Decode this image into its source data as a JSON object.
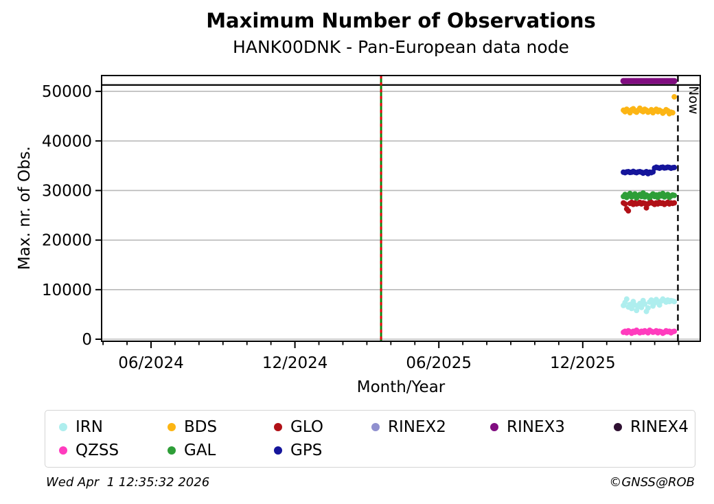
{
  "header": {
    "title": "Maximum Number of Observations",
    "subtitle": "HANK00DNK - Pan-European data node"
  },
  "footer": {
    "timestamp": "Wed Apr  1 12:35:32 2026",
    "credit": "©GNSS@ROB"
  },
  "chart_data": {
    "type": "scatter",
    "title": "Maximum Number of Observations",
    "subtitle": "HANK00DNK - Pan-European data node",
    "xlabel": "Month/Year",
    "ylabel": "Max. nr. of Obs.",
    "xlim": [
      2024.245,
      2026.325
    ],
    "ylim": [
      -415,
      53200
    ],
    "grid": "horizontal",
    "colors": {
      "grid": "#b8b8b8",
      "frame": "#000000"
    },
    "x_major_ticks": [
      {
        "value": 2024.4167,
        "label": "06/2024"
      },
      {
        "value": 2024.9167,
        "label": "12/2024"
      },
      {
        "value": 2025.4167,
        "label": "06/2025"
      },
      {
        "value": 2025.9167,
        "label": "12/2025"
      }
    ],
    "x_minor_step_months": 1,
    "y_ticks": [
      {
        "value": 0,
        "label": "0"
      },
      {
        "value": 10000,
        "label": "10000"
      },
      {
        "value": 20000,
        "label": "20000"
      },
      {
        "value": 30000,
        "label": "30000"
      },
      {
        "value": 40000,
        "label": "40000"
      },
      {
        "value": 50000,
        "label": "50000"
      }
    ],
    "annotations": {
      "event_line": {
        "x": 2025.216,
        "base_color": "#0c860c",
        "dash_color": "#e8000b",
        "style": "green solid with red dashes"
      },
      "now_line": {
        "x": 2026.2473,
        "label": "Now",
        "color": "#000000",
        "style": "dashed"
      },
      "rinex_strip_divider": {
        "y": 51300,
        "color": "#000000"
      }
    },
    "legend_order": [
      "IRN",
      "BDS",
      "GLO",
      "RINEX2",
      "RINEX3",
      "RINEX4",
      "QZSS",
      "GAL",
      "GPS"
    ],
    "x": [
      2026.058,
      2026.0637,
      2026.0694,
      2026.0751,
      2026.0808,
      2026.0865,
      2026.0922,
      2026.0979,
      2026.1036,
      2026.1093,
      2026.115,
      2026.1207,
      2026.1264,
      2026.1321,
      2026.1378,
      2026.1435,
      2026.1492,
      2026.1549,
      2026.1606,
      2026.1663,
      2026.172,
      2026.1777,
      2026.1834,
      2026.1891,
      2026.1948,
      2026.2005,
      2026.2062,
      2026.2119,
      2026.2176,
      2026.2233,
      2026.229,
      2026.2347
    ],
    "series": [
      {
        "name": "IRN",
        "color": "#aeeeee",
        "marker_r": 4,
        "values": [
          6800,
          7400,
          8100,
          6500,
          7000,
          6200,
          7600,
          6900,
          5800,
          6600,
          7200,
          6400,
          7800,
          7100,
          5600,
          6300,
          7500,
          7900,
          6700,
          7300,
          8000,
          7600,
          6900,
          7700,
          8100,
          7800,
          7500,
          7900,
          7600,
          7800,
          7700,
          7600
        ]
      },
      {
        "name": "QZSS",
        "color": "#ff3cbe",
        "marker_r": 4,
        "values": [
          1400,
          1600,
          1300,
          1700,
          1500,
          1200,
          1600,
          1400,
          1800,
          1500,
          1300,
          1600,
          1400,
          1700,
          1500,
          1300,
          1800,
          1600,
          1400,
          1500,
          1700,
          1300,
          1600,
          1500,
          1200,
          1400,
          1700,
          1500,
          1600,
          1300,
          1500,
          1600
        ]
      },
      {
        "name": "BDS",
        "color": "#fcb514",
        "marker_r": 4,
        "values": [
          46200,
          45900,
          46400,
          46100,
          45700,
          46300,
          46500,
          46000,
          45800,
          46200,
          46600,
          46100,
          45900,
          46400,
          46200,
          45800,
          46000,
          46300,
          45700,
          46100,
          46400,
          45900,
          46200,
          46000,
          45600,
          45900,
          46300,
          46100,
          45500,
          45800,
          45700,
          48900
        ]
      },
      {
        "name": "GAL",
        "color": "#2e9e38",
        "marker_r": 4,
        "values": [
          28800,
          29200,
          28600,
          29100,
          29400,
          28700,
          29000,
          29300,
          28500,
          28900,
          29200,
          28800,
          29500,
          28700,
          29100,
          28900,
          28400,
          29000,
          29300,
          28800,
          29100,
          28600,
          29200,
          28900,
          29400,
          28700,
          29000,
          29200,
          28600,
          28900,
          29100,
          29000
        ]
      },
      {
        "name": "GLO",
        "color": "#b11117",
        "marker_r": 4,
        "values": [
          27500,
          27300,
          26300,
          25900,
          27400,
          27600,
          27200,
          27500,
          27300,
          27400,
          27600,
          27300,
          27500,
          27400,
          26500,
          27300,
          27500,
          27600,
          27400,
          27200,
          27500,
          27300,
          27600,
          27400,
          27500,
          27200,
          27400,
          27600,
          27300,
          27500,
          27400,
          27500
        ]
      },
      {
        "name": "GPS",
        "color": "#15159b",
        "marker_r": 4,
        "values": [
          33700,
          33600,
          33750,
          33800,
          33650,
          33700,
          33850,
          33700,
          33600,
          33750,
          33800,
          33700,
          33500,
          33650,
          33800,
          33400,
          33700,
          33600,
          33750,
          34550,
          34700,
          34600,
          34500,
          34650,
          34700,
          34550,
          34600,
          34700,
          34650,
          34500,
          34600,
          34650
        ]
      },
      {
        "name": "RINEX2",
        "color": "#9090cf",
        "marker_r": 4,
        "values": []
      },
      {
        "name": "RINEX3",
        "color": "#800d80",
        "marker_r": 4.5,
        "values": [
          52100,
          52100,
          52100,
          52100,
          52100,
          52100,
          52100,
          52100,
          52100,
          52100,
          52100,
          52100,
          52100,
          52100,
          52100,
          52100,
          52100,
          52100,
          52100,
          52100,
          52100,
          52100,
          52100,
          52100,
          52100,
          52100,
          52100,
          52100,
          52100,
          52100,
          52100,
          52100
        ]
      },
      {
        "name": "RINEX4",
        "color": "#2f1132",
        "marker_r": 4,
        "values": []
      }
    ]
  }
}
